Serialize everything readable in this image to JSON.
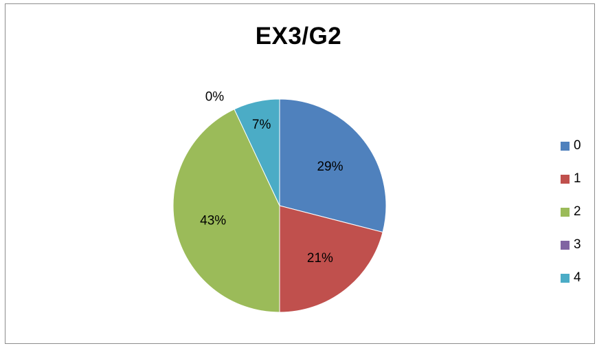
{
  "chart_data": {
    "type": "pie",
    "title": "EX3/G2",
    "categories": [
      "0",
      "1",
      "2",
      "3",
      "4"
    ],
    "values": [
      29,
      21,
      43,
      0,
      7
    ],
    "labels": [
      "29%",
      "21%",
      "43%",
      "0%",
      "7%"
    ],
    "colors": [
      "#4F81BD",
      "#C0504D",
      "#9BBB59",
      "#8064A2",
      "#4BACC6"
    ],
    "legend_position": "right",
    "start_angle_deg": 0,
    "direction": "clockwise"
  }
}
